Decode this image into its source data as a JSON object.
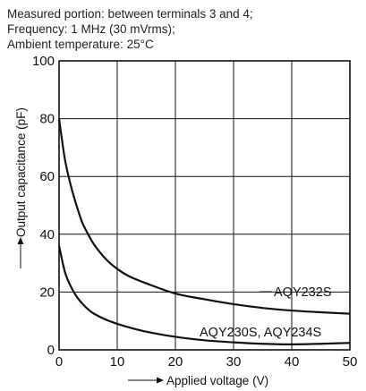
{
  "conditions": [
    "Measured portion: between terminals 3 and 4;",
    "Frequency: 1 MHz (30 mVrms);",
    "Ambient temperature: 25°C"
  ],
  "chart_data": {
    "type": "line",
    "xlabel": "Applied voltage (V)",
    "ylabel": "Output capacitance (pF)",
    "xlim": [
      0,
      50
    ],
    "ylim": [
      0,
      100
    ],
    "x_ticks": [
      0,
      10,
      20,
      30,
      40,
      50
    ],
    "y_ticks": [
      0,
      20,
      40,
      60,
      80,
      100
    ],
    "grid": true,
    "series": [
      {
        "name": "AQY232S",
        "x": [
          0,
          1,
          2,
          3,
          4,
          5,
          6,
          8,
          10,
          12,
          15,
          20,
          25,
          30,
          35,
          40,
          45,
          50
        ],
        "y": [
          80,
          66,
          57,
          50,
          44,
          40,
          36.5,
          31.5,
          28,
          25.5,
          23,
          19.5,
          17.5,
          15.8,
          14.5,
          13.6,
          13,
          12.5
        ]
      },
      {
        "name": "AQY230S, AQY234S",
        "x": [
          0,
          1,
          2,
          3,
          4,
          5,
          6,
          8,
          10,
          12,
          15,
          20,
          25,
          30,
          35,
          40,
          45,
          50
        ],
        "y": [
          36,
          27,
          22,
          18.5,
          16,
          14,
          12.5,
          10.5,
          9,
          7.8,
          6.3,
          4.5,
          3.3,
          2.6,
          2.1,
          1.9,
          2.1,
          2.4
        ]
      }
    ]
  }
}
